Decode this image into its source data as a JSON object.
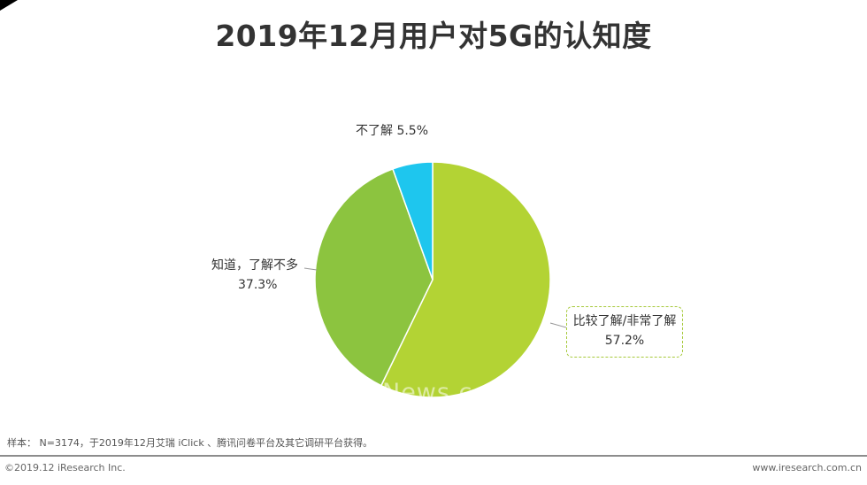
{
  "title": "2019年12月用户对5G的认知度",
  "chart_data": {
    "type": "pie",
    "slices": [
      {
        "label": "比较了解/非常了解",
        "value": 57.2,
        "value_label": "57.2%",
        "color": "#b3d334"
      },
      {
        "label": "知道，了解不多",
        "value": 37.3,
        "value_label": "37.3%",
        "color": "#8cc43f"
      },
      {
        "label": "不了解",
        "value": 5.5,
        "value_label": "5.5%",
        "color": "#1ec6ee"
      }
    ],
    "start": "12 o'clock",
    "direction": "clockwise",
    "slice_separator_color": "#ffffff"
  },
  "watermark": "News.c",
  "note": "样本： N=3174，于2019年12月艾瑞 iClick 、腾讯问卷平台及其它调研平台获得。",
  "footer": {
    "copyright": "©2019.12 iResearch Inc.",
    "website": "www.iresearch.com.cn"
  }
}
